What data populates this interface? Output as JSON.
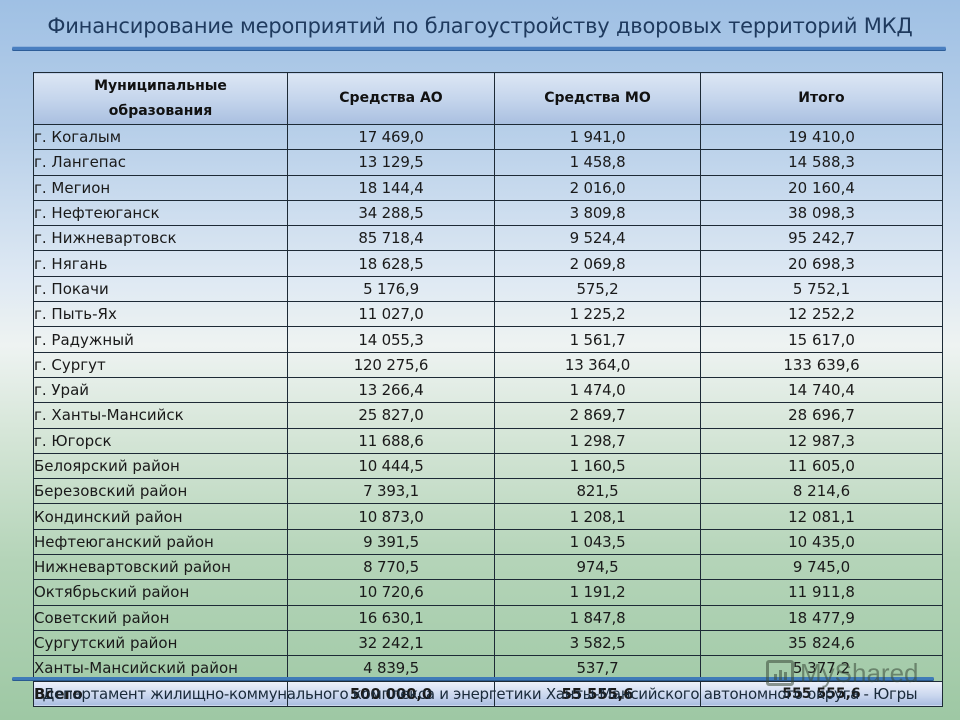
{
  "title": "Финансирование мероприятий по благоустройству дворовых территорий МКД",
  "table": {
    "headers": [
      "Муниципальные образования",
      "Средства АО",
      "Средства МО",
      "Итого"
    ],
    "rows": [
      {
        "name": "г. Когалым",
        "ao": "17 469,0",
        "mo": "1 941,0",
        "total": "19 410,0"
      },
      {
        "name": "г. Лангепас",
        "ao": "13 129,5",
        "mo": "1 458,8",
        "total": "14 588,3"
      },
      {
        "name": "г. Мегион",
        "ao": "18 144,4",
        "mo": "2 016,0",
        "total": "20 160,4"
      },
      {
        "name": "г. Нефтеюганск",
        "ao": "34 288,5",
        "mo": "3 809,8",
        "total": "38 098,3"
      },
      {
        "name": "г. Нижневартовск",
        "ao": "85 718,4",
        "mo": "9 524,4",
        "total": "95 242,7"
      },
      {
        "name": "г. Нягань",
        "ao": "18 628,5",
        "mo": "2 069,8",
        "total": "20 698,3"
      },
      {
        "name": "г. Покачи",
        "ao": "5 176,9",
        "mo": "575,2",
        "total": "5 752,1"
      },
      {
        "name": "г. Пыть-Ях",
        "ao": "11 027,0",
        "mo": "1 225,2",
        "total": "12 252,2"
      },
      {
        "name": "г. Радужный",
        "ao": "14 055,3",
        "mo": "1 561,7",
        "total": "15 617,0"
      },
      {
        "name": "г. Сургут",
        "ao": "120 275,6",
        "mo": "13 364,0",
        "total": "133 639,6"
      },
      {
        "name": "г. Урай",
        "ao": "13 266,4",
        "mo": "1 474,0",
        "total": "14 740,4"
      },
      {
        "name": "г. Ханты-Мансийск",
        "ao": "25 827,0",
        "mo": "2 869,7",
        "total": "28 696,7"
      },
      {
        "name": "г. Югорск",
        "ao": "11 688,6",
        "mo": "1 298,7",
        "total": "12 987,3"
      },
      {
        "name": "Белоярский район",
        "ao": "10 444,5",
        "mo": "1 160,5",
        "total": "11 605,0"
      },
      {
        "name": "Березовский район",
        "ao": "7 393,1",
        "mo": "821,5",
        "total": "8 214,6"
      },
      {
        "name": "Кондинский район",
        "ao": "10 873,0",
        "mo": "1 208,1",
        "total": "12 081,1"
      },
      {
        "name": "Нефтеюганский район",
        "ao": "9 391,5",
        "mo": "1 043,5",
        "total": "10 435,0"
      },
      {
        "name": "Нижневартовский район",
        "ao": "8 770,5",
        "mo": "974,5",
        "total": "9 745,0"
      },
      {
        "name": "Октябрьский район",
        "ao": "10 720,6",
        "mo": "1 191,2",
        "total": "11 911,8"
      },
      {
        "name": "Советский район",
        "ao": "16 630,1",
        "mo": "1 847,8",
        "total": "18 477,9"
      },
      {
        "name": "Сургутский район",
        "ao": "32 242,1",
        "mo": "3 582,5",
        "total": "35 824,6"
      },
      {
        "name": "Ханты-Мансийский район",
        "ao": "4 839,5",
        "mo": "537,7",
        "total": "5 377,2"
      }
    ],
    "total_row": {
      "name": "Всего",
      "ao": "500 000,0",
      "mo": "55 555,6",
      "total": "555 555,6"
    }
  },
  "footer": "Департамент жилищно-коммунального комплекса и энергетики Ханты-Мансийского автономного округа - Югры",
  "watermark": "MyShared",
  "colors": {
    "title": "#1f3a5e",
    "rule": "#4a7fc0",
    "header_bg": "#c5d5ec",
    "bg_top": "#9fc0e4",
    "bg_bottom": "#9ec8a4"
  }
}
